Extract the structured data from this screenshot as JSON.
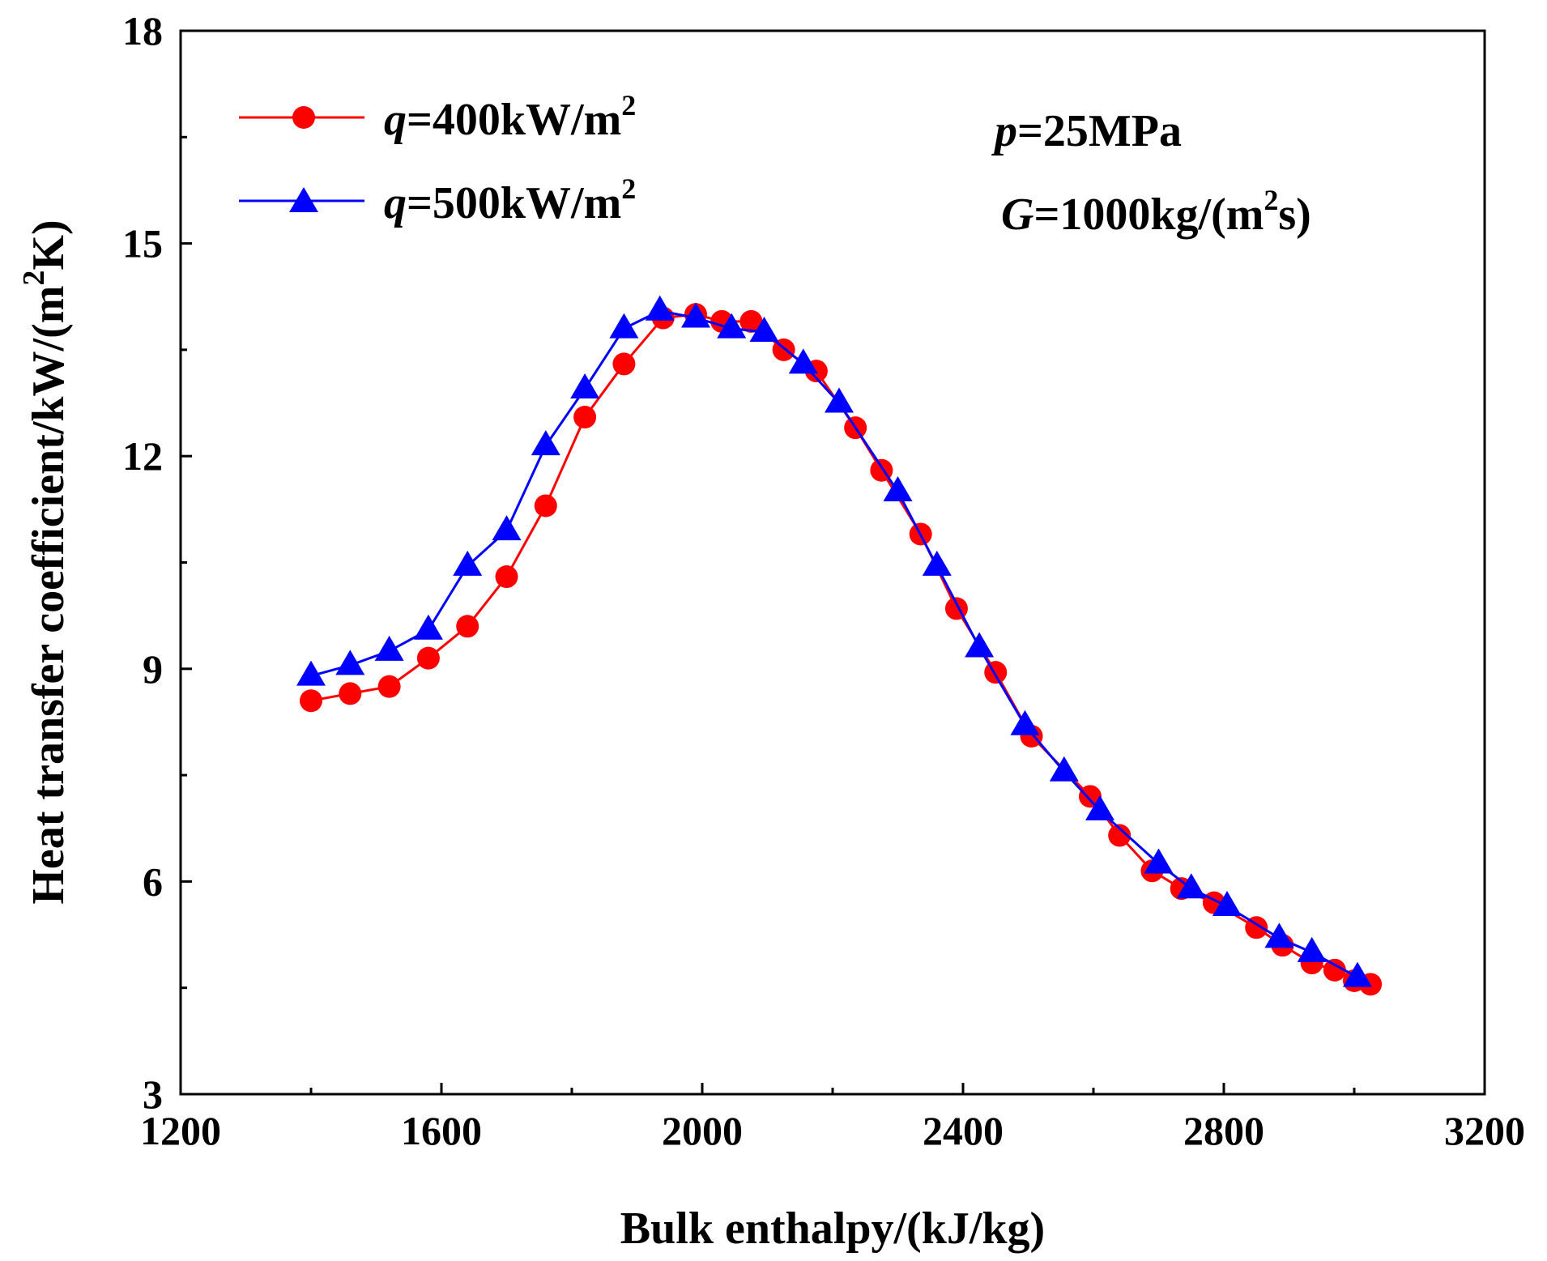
{
  "chart_data": {
    "type": "line",
    "title": "",
    "xlabel": "Bulk enthalpy/(kJ/kg)",
    "ylabel": {
      "base": "Heat transfer coefficient/kW/(m",
      "sup": "2",
      "tail": "K)"
    },
    "xlim": [
      1200,
      3200
    ],
    "ylim": [
      3,
      18
    ],
    "xticks": [
      1200,
      1600,
      2000,
      2400,
      2800,
      3200
    ],
    "yticks": [
      3,
      6,
      9,
      12,
      15,
      18
    ],
    "grid": false,
    "legend_position": "top-left",
    "annotations": [
      {
        "var": "p",
        "text": "=25MPa",
        "sup": "",
        "tail": ""
      },
      {
        "var": "G",
        "text": "=1000kg/(m",
        "sup": "2",
        "tail": "s)"
      }
    ],
    "series": [
      {
        "name": "q=400kW/m2",
        "label_var": "q",
        "label_text": "=400kW/m",
        "label_sup": "2",
        "color": "#ff0000",
        "marker": "circle",
        "x": [
          1400,
          1460,
          1520,
          1580,
          1640,
          1700,
          1760,
          1820,
          1880,
          1940,
          1990,
          2030,
          2075,
          2125,
          2175,
          2235,
          2275,
          2335,
          2390,
          2450,
          2505,
          2595,
          2640,
          2690,
          2735,
          2785,
          2850,
          2890,
          2935,
          2970,
          3000,
          3025
        ],
        "y": [
          8.55,
          8.65,
          8.75,
          9.15,
          9.6,
          10.3,
          11.3,
          12.55,
          13.3,
          13.95,
          14.0,
          13.9,
          13.9,
          13.5,
          13.2,
          12.4,
          11.8,
          10.9,
          9.85,
          8.95,
          8.05,
          7.2,
          6.65,
          6.15,
          5.9,
          5.7,
          5.35,
          5.1,
          4.85,
          4.75,
          4.6,
          4.55
        ]
      },
      {
        "name": "q=500kW/m2",
        "label_var": "q",
        "label_text": "=500kW/m",
        "label_sup": "2",
        "color": "#0000ff",
        "marker": "triangle",
        "x": [
          1400,
          1460,
          1520,
          1580,
          1640,
          1700,
          1760,
          1820,
          1880,
          1935,
          1990,
          2045,
          2095,
          2155,
          2210,
          2300,
          2360,
          2425,
          2495,
          2555,
          2610,
          2700,
          2750,
          2805,
          2885,
          2935,
          3005
        ],
        "y": [
          8.9,
          9.05,
          9.25,
          9.55,
          10.45,
          10.95,
          12.15,
          12.95,
          13.8,
          14.05,
          13.95,
          13.8,
          13.75,
          13.3,
          12.75,
          11.5,
          10.45,
          9.3,
          8.2,
          7.55,
          7.0,
          6.25,
          5.9,
          5.65,
          5.2,
          5.0,
          4.65
        ]
      }
    ]
  }
}
